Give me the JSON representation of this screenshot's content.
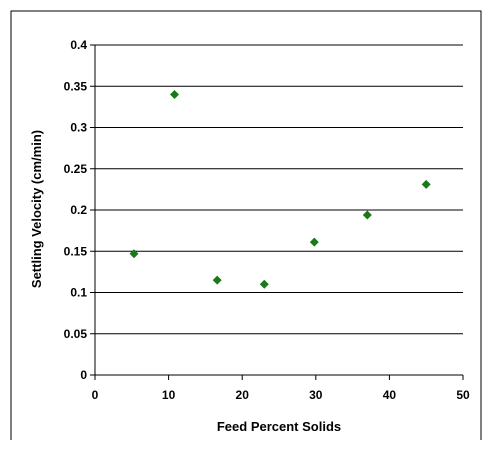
{
  "chart_data": {
    "type": "scatter",
    "xlabel": "Feed Percent Solids",
    "ylabel": "Settling Velocity (cm/min)",
    "xlim": [
      0,
      50
    ],
    "ylim": [
      0,
      0.4
    ],
    "x_ticks": [
      "0",
      "10",
      "20",
      "30",
      "40",
      "50"
    ],
    "y_ticks": [
      "0",
      "0.05",
      "0.1",
      "0.15",
      "0.2",
      "0.25",
      "0.3",
      "0.35",
      "0.4"
    ],
    "grid": "horizontal",
    "marker": "diamond",
    "colors": {
      "marker": "#1a7a1a",
      "gridline": "#000000",
      "frame": "#000000"
    },
    "series": [
      {
        "x": [
          5.3,
          10.8,
          16.6,
          23.0,
          29.8,
          37.0,
          45.0
        ],
        "y": [
          0.147,
          0.34,
          0.115,
          0.11,
          0.161,
          0.194,
          0.231
        ]
      }
    ]
  }
}
